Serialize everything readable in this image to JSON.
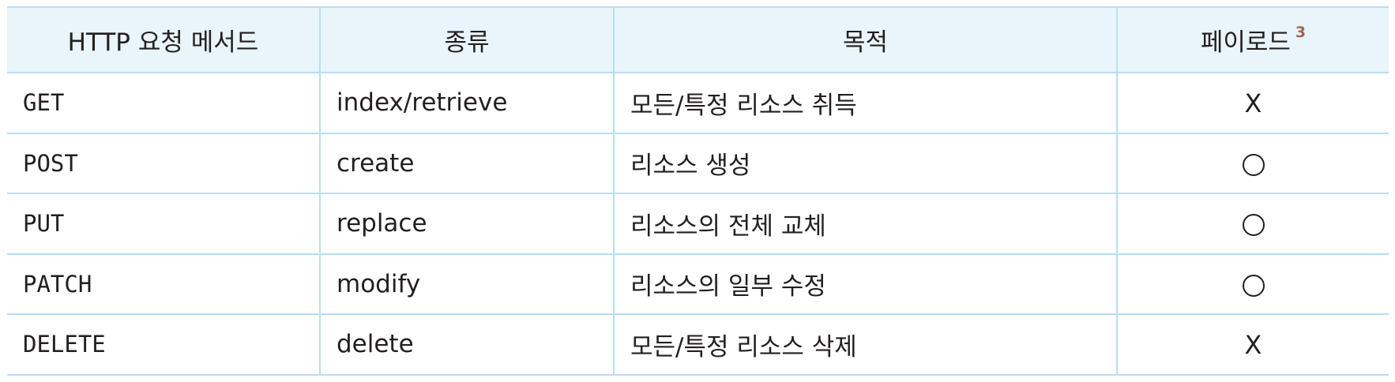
{
  "headers": {
    "method": "HTTP 요청 메서드",
    "kind": "종류",
    "purpose": "목적",
    "payload": "페이로드",
    "payload_footnote": "3"
  },
  "rows": [
    {
      "method": "GET",
      "kind": "index/retrieve",
      "purpose": "모든/특정 리소스 취득",
      "payload": "X",
      "payload_icon": "cross"
    },
    {
      "method": "POST",
      "kind": "create",
      "purpose": "리소스 생성",
      "payload": "○",
      "payload_icon": "circle"
    },
    {
      "method": "PUT",
      "kind": "replace",
      "purpose": "리소스의 전체 교체",
      "payload": "○",
      "payload_icon": "circle"
    },
    {
      "method": "PATCH",
      "kind": "modify",
      "purpose": "리소스의 일부 수정",
      "payload": "○",
      "payload_icon": "circle"
    },
    {
      "method": "DELETE",
      "kind": "delete",
      "purpose": "모든/특정 리소스 삭제",
      "payload": "X",
      "payload_icon": "cross"
    }
  ],
  "colors": {
    "header_bg": "#e9f4fb",
    "border": "#b9def3",
    "text": "#231f20",
    "footnote": "#a2664d"
  }
}
